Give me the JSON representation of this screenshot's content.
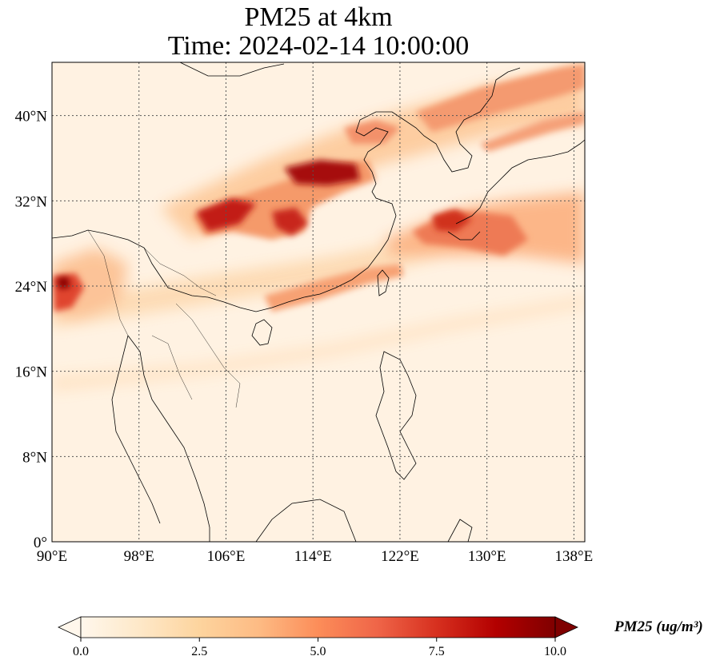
{
  "title": {
    "line1": "PM25 at 4km",
    "line2": "Time: 2024-02-14 10:00:00"
  },
  "map": {
    "extent": {
      "lon_min": 90,
      "lon_max": 139,
      "lat_min": 0,
      "lat_max": 45
    },
    "lon_ticks": [
      90,
      98,
      106,
      114,
      122,
      130,
      138
    ],
    "lon_labels": [
      "90°E",
      "98°E",
      "106°E",
      "114°E",
      "122°E",
      "130°E",
      "138°E"
    ],
    "lat_ticks": [
      0,
      8,
      16,
      24,
      32,
      40
    ],
    "lat_labels": [
      "0°",
      "8°N",
      "16°N",
      "24°N",
      "32°N",
      "40°N"
    ],
    "gridline_style": "dotted"
  },
  "colorbar": {
    "colormap": "OrRd",
    "colors": [
      "#fff7ec",
      "#fee8c8",
      "#fdd49e",
      "#fdbb84",
      "#fc8d59",
      "#ef6548",
      "#d7301f",
      "#b30000",
      "#7f0000"
    ],
    "vmin": 0.0,
    "vmax": 10.0,
    "ticks": [
      "0.0",
      "2.5",
      "5.0",
      "7.5",
      "10.0"
    ],
    "extend": "both",
    "label": "PM25 (ug/m³)"
  }
}
